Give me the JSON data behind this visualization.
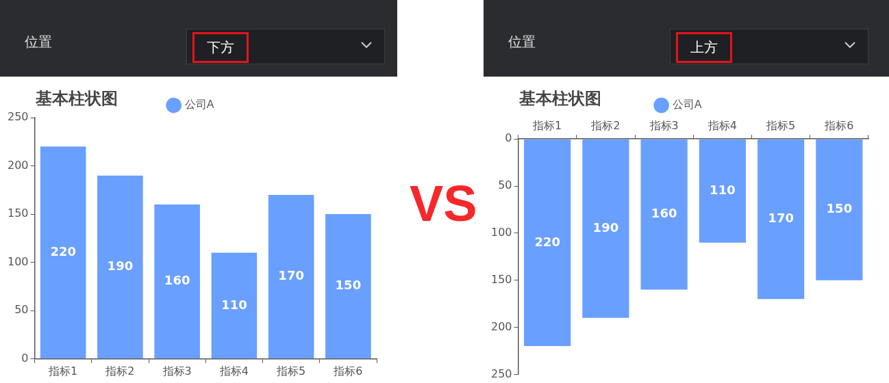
{
  "chart_data": [
    {
      "type": "bar",
      "title": "基本柱状图",
      "annotations": [
        "位置",
        "下方"
      ],
      "categories": [
        "指标1",
        "指标2",
        "指标3",
        "指标4",
        "指标5",
        "指标6"
      ],
      "series": [
        {
          "name": "公司A",
          "color": "#699ffe",
          "values": [
            220,
            190,
            160,
            110,
            170,
            150
          ]
        }
      ],
      "ylim": [
        0,
        250
      ],
      "yticks": [
        0,
        50,
        100,
        150,
        200,
        250
      ],
      "grid": false,
      "legend": "top",
      "marker": "circle",
      "data_labels": true
    },
    {
      "type": "other",
      "annotations": [
        "VS"
      ]
    },
    {
      "type": "bar",
      "title": "基本柱状图",
      "annotations": [
        "位置",
        "上方"
      ],
      "categories": [
        "指标1",
        "指标2",
        "指标3",
        "指标4",
        "指标5",
        "指标6"
      ],
      "series": [
        {
          "name": "公司A",
          "color": "#699ffe",
          "values": [
            220,
            190,
            160,
            110,
            170,
            150
          ]
        }
      ],
      "ylim": [
        250,
        0
      ],
      "yticks": [
        0,
        50,
        100,
        150,
        200,
        250
      ],
      "grid": false,
      "legend": "top",
      "marker": "circle",
      "data_labels": true
    }
  ]
}
